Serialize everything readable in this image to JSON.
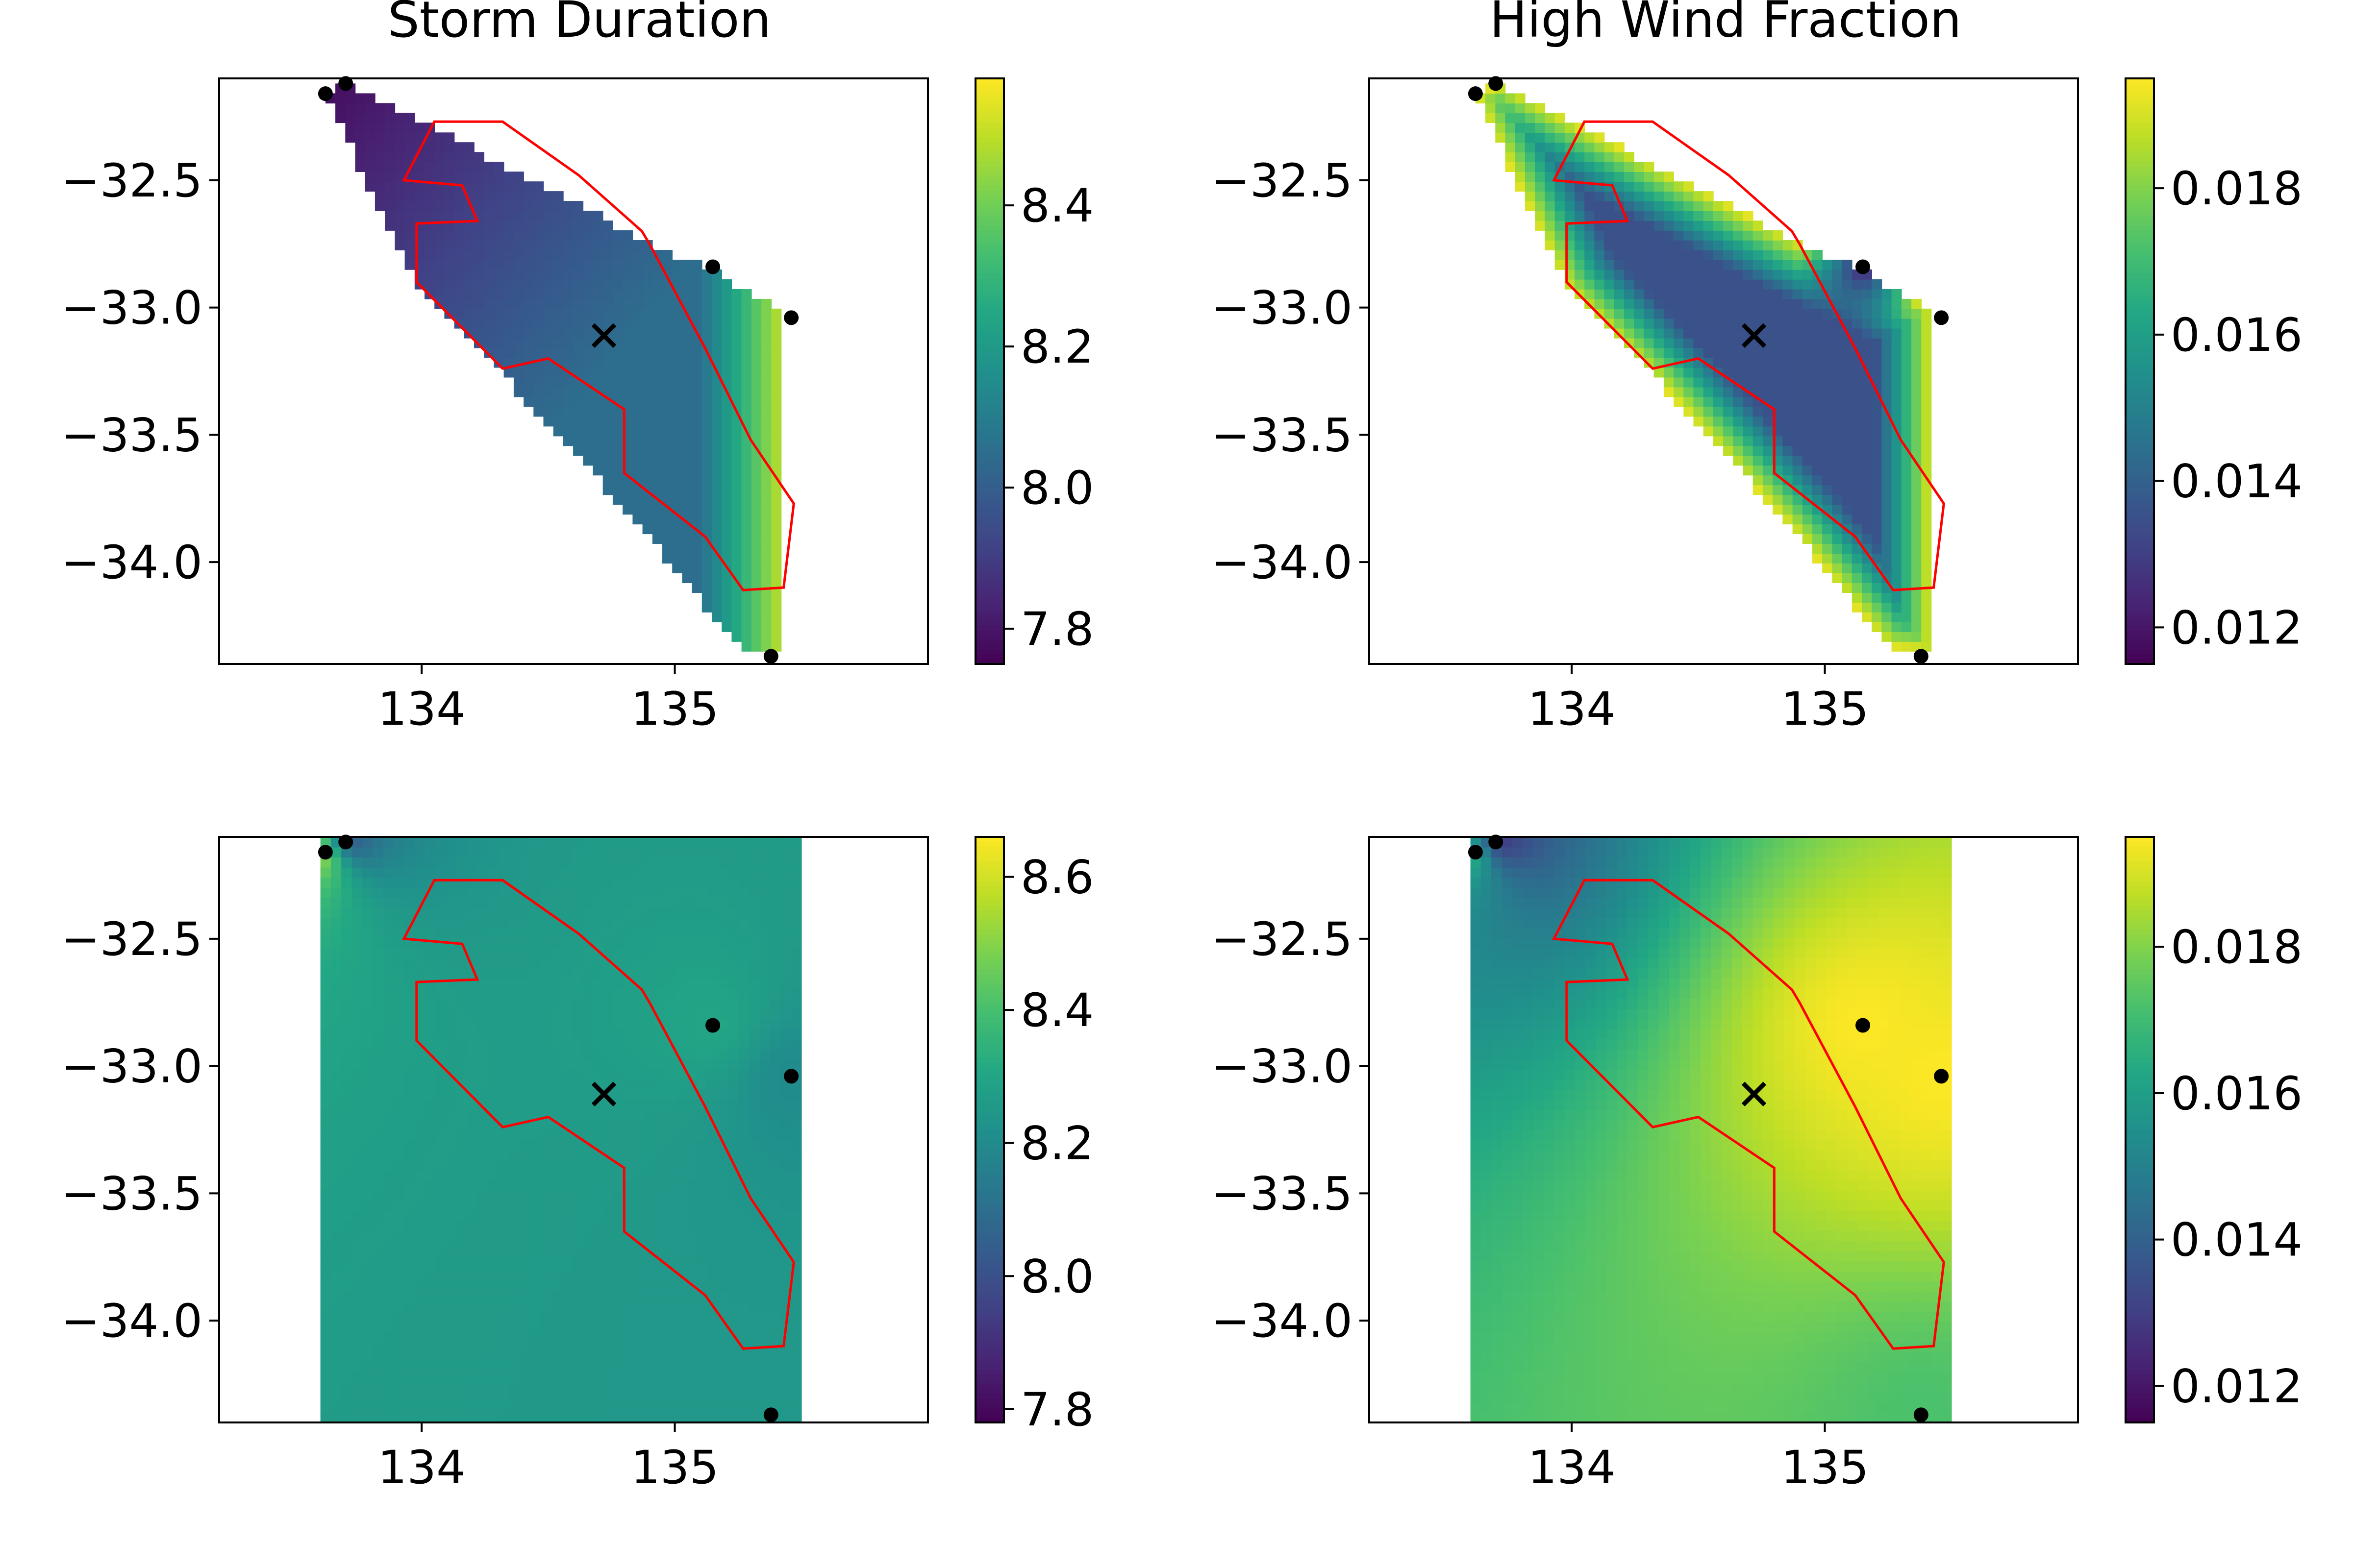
{
  "chart_data": [
    {
      "type": "heatmap",
      "title": "Storm Duration",
      "xlim": [
        133.2,
        136.0
      ],
      "ylim": [
        -34.4,
        -32.1
      ],
      "x_ticks": [
        134,
        135
      ],
      "x_tick_labels": [
        "134",
        "135"
      ],
      "y_ticks": [
        -32.5,
        -33.0,
        -33.5,
        -34.0
      ],
      "y_tick_labels": [
        "−32.5",
        "−33.0",
        "−33.5",
        "−34.0"
      ],
      "colormap": "viridis",
      "colorbar": {
        "vmin": 7.75,
        "vmax": 8.58,
        "ticks": [
          7.8,
          8.0,
          8.2,
          8.4
        ],
        "tick_labels": [
          "7.8",
          "8.0",
          "8.2",
          "8.4"
        ]
      },
      "field": {
        "region": "masked",
        "lon_range": [
          133.62,
          135.42
        ],
        "lat_range": [
          -34.35,
          -32.12
        ],
        "model": "distance",
        "values": {
          "at_northwest": 7.78,
          "at_center": 8.05,
          "at_east": 8.5,
          "at_south": 8.4
        }
      }
    },
    {
      "type": "heatmap",
      "title": "High Wind Fraction",
      "xlim": [
        133.2,
        136.0
      ],
      "ylim": [
        -34.4,
        -32.1
      ],
      "x_ticks": [
        134,
        135
      ],
      "x_tick_labels": [
        "134",
        "135"
      ],
      "y_ticks": [
        -32.5,
        -33.0,
        -33.5,
        -34.0
      ],
      "y_tick_labels": [
        "−32.5",
        "−33.0",
        "−33.5",
        "−34.0"
      ],
      "colormap": "viridis",
      "colorbar": {
        "vmin": 0.0115,
        "vmax": 0.0195,
        "ticks": [
          0.012,
          0.014,
          0.016,
          0.018
        ],
        "tick_labels": [
          "0.012",
          "0.014",
          "0.016",
          "0.018"
        ]
      },
      "field": {
        "region": "masked",
        "lon_range": [
          133.62,
          135.42
        ],
        "lat_range": [
          -34.35,
          -32.12
        ],
        "model": "edge",
        "values": {
          "center": 0.0135,
          "edge": 0.0192,
          "min_near_station": 0.012
        }
      }
    },
    {
      "type": "heatmap",
      "title": "",
      "xlim": [
        133.2,
        136.0
      ],
      "ylim": [
        -34.4,
        -32.1
      ],
      "x_ticks": [
        134,
        135
      ],
      "x_tick_labels": [
        "134",
        "135"
      ],
      "y_ticks": [
        -32.5,
        -33.0,
        -33.5,
        -34.0
      ],
      "y_tick_labels": [
        "−32.5",
        "−33.0",
        "−33.5",
        "−34.0"
      ],
      "colormap": "viridis",
      "colorbar": {
        "vmin": 7.78,
        "vmax": 8.66,
        "ticks": [
          7.8,
          8.0,
          8.2,
          8.4,
          8.6
        ],
        "tick_labels": [
          "7.8",
          "8.0",
          "8.2",
          "8.4",
          "8.6"
        ]
      },
      "field": {
        "region": "full",
        "lon_range": [
          133.6,
          135.5
        ],
        "lat_range": [
          -34.4,
          -32.1
        ],
        "model": "idw",
        "station_values": [
          8.66,
          7.9,
          8.3,
          8.2,
          8.25
        ]
      }
    },
    {
      "type": "heatmap",
      "title": "",
      "xlim": [
        133.2,
        136.0
      ],
      "ylim": [
        -34.4,
        -32.1
      ],
      "x_ticks": [
        134,
        135
      ],
      "x_tick_labels": [
        "134",
        "135"
      ],
      "y_ticks": [
        -32.5,
        -33.0,
        -33.5,
        -34.0
      ],
      "y_tick_labels": [
        "−32.5",
        "−33.0",
        "−33.5",
        "−34.0"
      ],
      "colormap": "viridis",
      "colorbar": {
        "vmin": 0.0115,
        "vmax": 0.0195,
        "ticks": [
          0.012,
          0.014,
          0.016,
          0.018
        ],
        "tick_labels": [
          "0.012",
          "0.014",
          "0.016",
          "0.018"
        ]
      },
      "field": {
        "region": "full",
        "lon_range": [
          133.6,
          135.5
        ],
        "lat_range": [
          -34.4,
          -32.1
        ],
        "model": "idw",
        "station_values": [
          0.0175,
          0.0118,
          0.0195,
          0.0195,
          0.0172
        ]
      }
    }
  ],
  "overlay": {
    "outline_color": "#ff0000",
    "outline": [
      [
        134.05,
        -32.27
      ],
      [
        134.32,
        -32.27
      ],
      [
        134.42,
        -32.34
      ],
      [
        134.62,
        -32.48
      ],
      [
        134.87,
        -32.7
      ],
      [
        134.9,
        -32.75
      ],
      [
        135.12,
        -33.16
      ],
      [
        135.3,
        -33.52
      ],
      [
        135.47,
        -33.77
      ],
      [
        135.43,
        -34.1
      ],
      [
        135.27,
        -34.11
      ],
      [
        135.12,
        -33.9
      ],
      [
        134.8,
        -33.65
      ],
      [
        134.8,
        -33.4
      ],
      [
        134.62,
        -33.28
      ],
      [
        134.5,
        -33.2
      ],
      [
        134.32,
        -33.24
      ],
      [
        133.98,
        -32.9
      ],
      [
        133.98,
        -32.67
      ],
      [
        134.22,
        -32.66
      ],
      [
        134.16,
        -32.52
      ],
      [
        133.93,
        -32.5
      ]
    ],
    "stations": [
      [
        133.62,
        -32.16
      ],
      [
        133.7,
        -32.12
      ],
      [
        135.15,
        -32.84
      ],
      [
        135.46,
        -33.04
      ],
      [
        135.38,
        -34.37
      ]
    ],
    "center_marker": [
      134.72,
      -33.11
    ]
  }
}
